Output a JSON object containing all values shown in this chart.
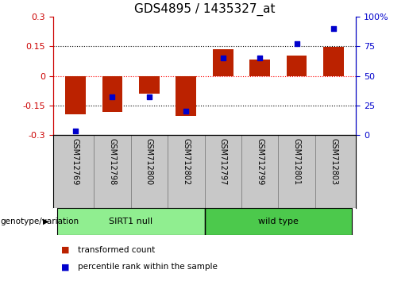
{
  "title": "GDS4895 / 1435327_at",
  "samples": [
    "GSM712769",
    "GSM712798",
    "GSM712800",
    "GSM712802",
    "GSM712797",
    "GSM712799",
    "GSM712801",
    "GSM712803"
  ],
  "transformed_count": [
    -0.195,
    -0.185,
    -0.09,
    -0.205,
    0.135,
    0.085,
    0.105,
    0.148
  ],
  "percentile_rank": [
    3,
    32,
    32,
    20,
    65,
    65,
    77,
    90
  ],
  "groups": [
    {
      "label": "SIRT1 null",
      "start": 0,
      "end": 4,
      "color": "#90EE90"
    },
    {
      "label": "wild type",
      "start": 4,
      "end": 8,
      "color": "#4CC94C"
    }
  ],
  "bar_color": "#BB2200",
  "dot_color": "#0000CC",
  "ylim_left": [
    -0.3,
    0.3
  ],
  "ylim_right": [
    0,
    100
  ],
  "yticks_left": [
    -0.3,
    -0.15,
    0,
    0.15,
    0.3
  ],
  "yticks_right": [
    0,
    25,
    50,
    75,
    100
  ],
  "hlines": [
    -0.15,
    0,
    0.15
  ],
  "hline_colors": [
    "black",
    "red",
    "black"
  ],
  "hline_styles": [
    "dotted",
    "dotted",
    "dotted"
  ],
  "left_axis_color": "#CC0000",
  "right_axis_color": "#0000CC",
  "legend_items": [
    {
      "label": "transformed count",
      "color": "#BB2200"
    },
    {
      "label": "percentile rank within the sample",
      "color": "#0000CC"
    }
  ],
  "genotype_label": "genotype/variation",
  "background_color": "#ffffff",
  "plot_bg_color": "#ffffff",
  "title_fontsize": 11,
  "xlabel_bg_color": "#C8C8C8",
  "group_bar_height": 0.22
}
